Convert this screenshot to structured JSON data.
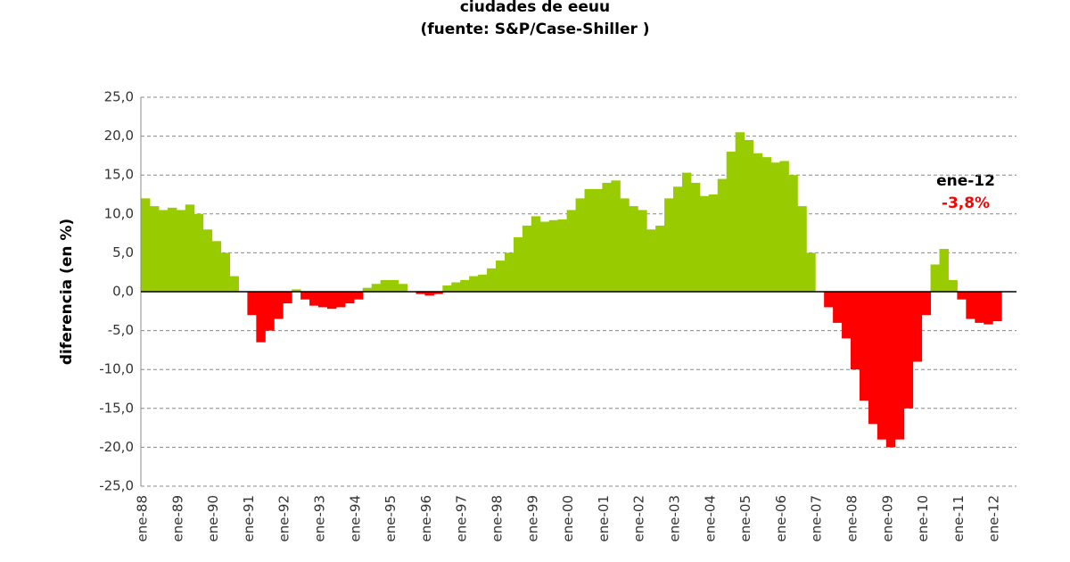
{
  "chart_data": {
    "type": "area",
    "title": "ciudades de eeuu",
    "subtitle": "(fuente:  S&P/Case-Shiller )",
    "y_label": "diferencia (en %)",
    "annotations": [
      "ene-12",
      "-3,8%"
    ],
    "positive_color": "#99cc00",
    "negative_color": "#ff0000",
    "grid": true,
    "ylim": [
      -25,
      25
    ],
    "yticks": [
      {
        "value": -25,
        "label": "-25,0"
      },
      {
        "value": -20,
        "label": "-20,0"
      },
      {
        "value": -15,
        "label": "-15,0"
      },
      {
        "value": -10,
        "label": "-10,0"
      },
      {
        "value": -5,
        "label": "-5,0"
      },
      {
        "value": 0,
        "label": "0,0"
      },
      {
        "value": 5,
        "label": "5,0"
      },
      {
        "value": 10,
        "label": "10,0"
      },
      {
        "value": 15,
        "label": "15,0"
      },
      {
        "value": 20,
        "label": "20,0"
      },
      {
        "value": 25,
        "label": "25,0"
      }
    ],
    "categories": [
      "ene-88",
      null,
      null,
      null,
      "ene-89",
      null,
      null,
      null,
      "ene-90",
      null,
      null,
      null,
      "ene-91",
      null,
      null,
      null,
      "ene-92",
      null,
      null,
      null,
      "ene-93",
      null,
      null,
      null,
      "ene-94",
      null,
      null,
      null,
      "ene-95",
      null,
      null,
      null,
      "ene-96",
      null,
      null,
      null,
      "ene-97",
      null,
      null,
      null,
      "ene-98",
      null,
      null,
      null,
      "ene-99",
      null,
      null,
      null,
      "ene-00",
      null,
      null,
      null,
      "ene-01",
      null,
      null,
      null,
      "ene-02",
      null,
      null,
      null,
      "ene-03",
      null,
      null,
      null,
      "ene-04",
      null,
      null,
      null,
      "ene-05",
      null,
      null,
      null,
      "ene-06",
      null,
      null,
      null,
      "ene-07",
      null,
      null,
      null,
      "ene-08",
      null,
      null,
      null,
      "ene-09",
      null,
      null,
      null,
      "ene-10",
      null,
      null,
      null,
      "ene-11",
      null,
      null,
      null,
      "ene-12"
    ],
    "values": [
      12,
      11,
      10.5,
      10.8,
      10.5,
      11.2,
      10,
      8,
      6.5,
      5,
      2,
      0,
      -3,
      -6.5,
      -5,
      -3.5,
      -1.5,
      0.3,
      -1,
      -1.8,
      -2,
      -2.2,
      -2,
      -1.5,
      -1,
      0.5,
      1,
      1.5,
      1.5,
      1,
      0,
      -0.3,
      -0.5,
      -0.3,
      0.8,
      1.2,
      1.5,
      2,
      2.2,
      3,
      4,
      5,
      7,
      8.5,
      9.7,
      9,
      9.2,
      9.3,
      10.5,
      12,
      13.2,
      13.2,
      14,
      14.3,
      12,
      11,
      10.5,
      8,
      8.5,
      12,
      13.5,
      15.3,
      14,
      12.3,
      12.5,
      14.5,
      18,
      20.5,
      19.5,
      17.8,
      17.3,
      16.6,
      16.8,
      15,
      11,
      5,
      0,
      -2,
      -4,
      -6,
      -10,
      -14,
      -17,
      -19,
      -20,
      -19,
      -15,
      -9,
      -3,
      3.5,
      5.5,
      1.5,
      -1,
      -3.5,
      -4,
      -4.2,
      -3.8
    ]
  }
}
